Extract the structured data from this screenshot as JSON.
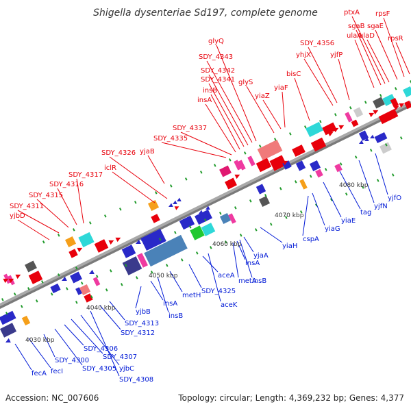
{
  "title": "Shigella dysenteriae Sd197, complete genome",
  "accession": "Accession: NC_007606",
  "topology": "Topology: circular; Length: 4,369,232 bp; Genes: 4,377",
  "colors": {
    "forward_label": "#e8000b",
    "reverse_label": "#0019d6",
    "backbone": "#9a9a9a"
  },
  "ticks": [
    "4030 kbp",
    "4040 kbp",
    "4050 kbp",
    "4060 kbp",
    "4070 kbp",
    "4080 kbp"
  ],
  "forward_labels": [
    "yjbD",
    "SDY_4311",
    "SDY_4315",
    "SDY_4316",
    "SDY_4317",
    "iclR",
    "SDY_4326",
    "yjaB",
    "SDY_4335",
    "SDY_4337",
    "insA",
    "insB",
    "SDY_4341",
    "SDY_4342",
    "SDY_4343",
    "glyQ",
    "glyS",
    "yiaZ",
    "yiaF",
    "bisC",
    "yhjX",
    "SDY_4356",
    "yjfP",
    "ulaA",
    "sgaB",
    "ptxA",
    "ulaD",
    "sgaE",
    "rpsF",
    "rpsR"
  ],
  "reverse_labels": [
    "fecA",
    "fecI",
    "SDY_4300",
    "SDY_4305",
    "SDY_4306",
    "SDY_4307",
    "yjbC",
    "SDY_4308",
    "SDY_4312",
    "SDY_4313",
    "yjbB",
    "insA",
    "insB",
    "metH",
    "SDY_4325",
    "aceA",
    "aceK",
    "metA",
    "insA",
    "insB",
    "yjaA",
    "yiaH",
    "cspA",
    "yiaG",
    "yiaE",
    "tag",
    "yjfN",
    "yjfO"
  ]
}
